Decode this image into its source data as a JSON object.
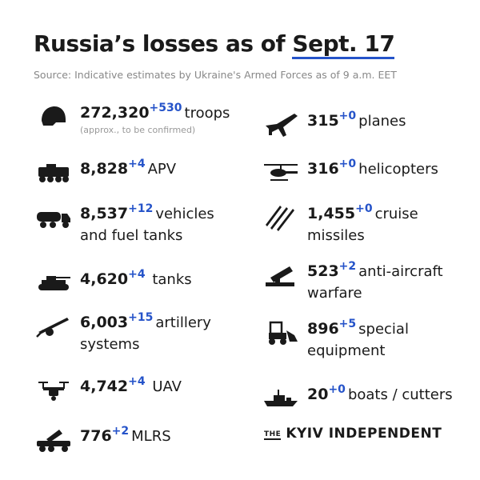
{
  "header": {
    "title_part1": "Russia’s losses as of",
    "title_date": "Sept. 17",
    "source": "Source: Indicative estimates by Ukraine's Armed Forces as of 9 a.m. EET"
  },
  "items": {
    "troops": {
      "value": "272,320",
      "delta": "+530",
      "label": "troops",
      "note": "(approx., to be confirmed)",
      "icon": "helmet-icon"
    },
    "apv": {
      "value": "8,828",
      "delta": "+4",
      "label": "APV",
      "icon": "apv-icon"
    },
    "vehicles": {
      "value": "8,537",
      "delta": "+12",
      "label": "vehicles",
      "label2": "and fuel tanks",
      "icon": "truck-icon"
    },
    "tanks": {
      "value": "4,620",
      "delta": "+4",
      "label": "tanks",
      "icon": "tank-icon"
    },
    "artillery": {
      "value": "6,003",
      "delta": "+15",
      "label": "artillery",
      "label2": "systems",
      "icon": "artillery-icon"
    },
    "uav": {
      "value": "4,742",
      "delta": "+4",
      "label": "UAV",
      "icon": "drone-icon"
    },
    "mlrs": {
      "value": "776",
      "delta": "+2",
      "label": "MLRS",
      "icon": "mlrs-icon"
    },
    "planes": {
      "value": "315",
      "delta": "+0",
      "label": "planes",
      "icon": "plane-icon"
    },
    "helicopters": {
      "value": "316",
      "delta": "+0",
      "label": "helicopters",
      "icon": "helicopter-icon"
    },
    "cruise": {
      "value": "1,455",
      "delta": "+0",
      "label": "cruise",
      "label2": "missiles",
      "icon": "missile-icon"
    },
    "antiair": {
      "value": "523",
      "delta": "+2",
      "label": "anti-aircraft",
      "label2": "warfare",
      "icon": "anti-aircraft-icon"
    },
    "special": {
      "value": "896",
      "delta": "+5",
      "label": "special",
      "label2": "equipment",
      "icon": "loader-icon"
    },
    "boats": {
      "value": "20",
      "delta": "+0",
      "label": "boats / cutters",
      "icon": "boat-icon"
    }
  },
  "brand": {
    "the": "THE",
    "name": "KYIV INDEPENDENT"
  },
  "colors": {
    "accent": "#2553c9",
    "text": "#1a1a1a",
    "muted": "#888888"
  }
}
